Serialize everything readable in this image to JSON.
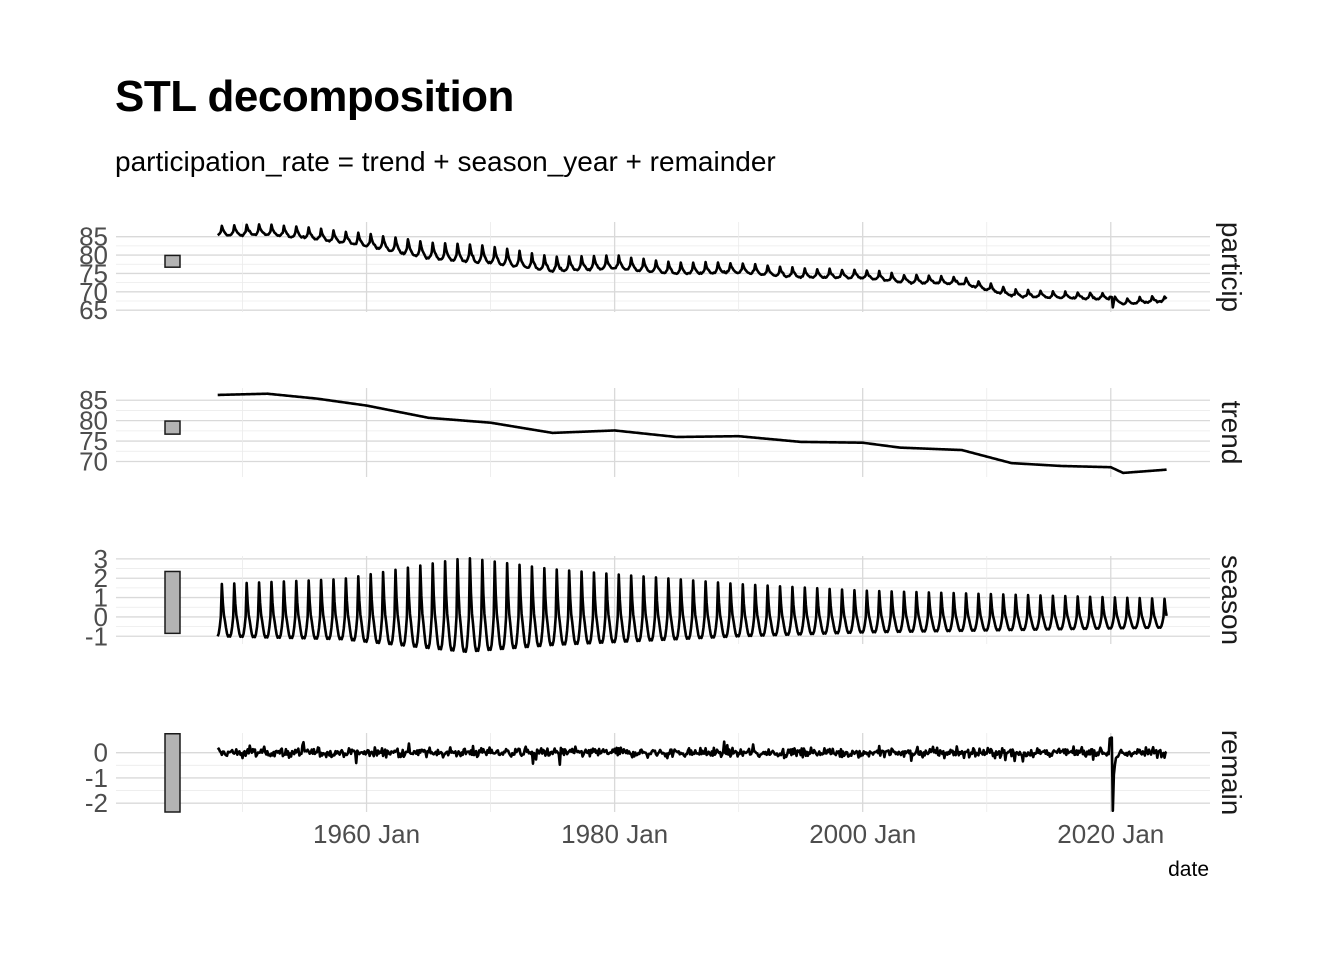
{
  "title": "STL decomposition",
  "subtitle": "participation_rate = trend + season_year + remainder",
  "chart_data": {
    "type": "line",
    "xlabel": "date",
    "x_ticks": [
      "1960 Jan",
      "1980 Jan",
      "2000 Jan",
      "2020 Jan"
    ],
    "x_range": [
      1939.8,
      2028.0
    ],
    "series_start": 1948.0,
    "series_end": 2024.5,
    "grid": true,
    "panels": [
      {
        "strip": "particip",
        "yticks": [
          65,
          70,
          75,
          80,
          85
        ],
        "ylim": [
          64.5,
          89.0
        ],
        "scale_bar": [
          76.7,
          79.9
        ],
        "trend_knots": [
          [
            1948,
            86.3
          ],
          [
            1952,
            86.6
          ],
          [
            1956,
            85.4
          ],
          [
            1960,
            83.7
          ],
          [
            1965,
            80.7
          ],
          [
            1970,
            79.5
          ],
          [
            1975,
            77.0
          ],
          [
            1980,
            77.6
          ],
          [
            1985,
            76.0
          ],
          [
            1990,
            76.2
          ],
          [
            1995,
            74.8
          ],
          [
            2000,
            74.6
          ],
          [
            2003,
            73.4
          ],
          [
            2008,
            72.8
          ],
          [
            2012,
            69.6
          ],
          [
            2016,
            68.9
          ],
          [
            2020,
            68.6
          ],
          [
            2021,
            67.2
          ],
          [
            2024.5,
            68.0
          ]
        ]
      },
      {
        "strip": "trend",
        "yticks": [
          70,
          75,
          80,
          85
        ],
        "ylim": [
          66.2,
          88.0
        ],
        "scale_bar": [
          76.7,
          79.9
        ],
        "trend_knots": [
          [
            1948,
            86.3
          ],
          [
            1952,
            86.6
          ],
          [
            1956,
            85.4
          ],
          [
            1960,
            83.7
          ],
          [
            1965,
            80.7
          ],
          [
            1970,
            79.5
          ],
          [
            1975,
            77.0
          ],
          [
            1980,
            77.6
          ],
          [
            1985,
            76.0
          ],
          [
            1990,
            76.2
          ],
          [
            1995,
            74.8
          ],
          [
            2000,
            74.6
          ],
          [
            2003,
            73.4
          ],
          [
            2008,
            72.8
          ],
          [
            2012,
            69.6
          ],
          [
            2016,
            68.9
          ],
          [
            2020,
            68.6
          ],
          [
            2021,
            67.2
          ],
          [
            2024.5,
            68.0
          ]
        ]
      },
      {
        "strip": "season",
        "yticks": [
          -1,
          0,
          1,
          2,
          3
        ],
        "ylim": [
          -1.4,
          3.15
        ],
        "scale_bar": [
          -0.85,
          2.35
        ],
        "amplitude_knots": [
          [
            1948,
            1.0
          ],
          [
            1958,
            1.15
          ],
          [
            1968,
            1.8
          ],
          [
            1975,
            1.45
          ],
          [
            1990,
            1.0
          ],
          [
            2000,
            0.8
          ],
          [
            2024.5,
            0.55
          ]
        ]
      },
      {
        "strip": "remain",
        "yticks": [
          -2,
          -1,
          0
        ],
        "ylim": [
          -2.35,
          0.78
        ],
        "scale_bar": [
          -2.35,
          0.75
        ],
        "shock": {
          "x": 2020.2,
          "min": -2.3,
          "peak_before": 0.6
        }
      }
    ]
  }
}
